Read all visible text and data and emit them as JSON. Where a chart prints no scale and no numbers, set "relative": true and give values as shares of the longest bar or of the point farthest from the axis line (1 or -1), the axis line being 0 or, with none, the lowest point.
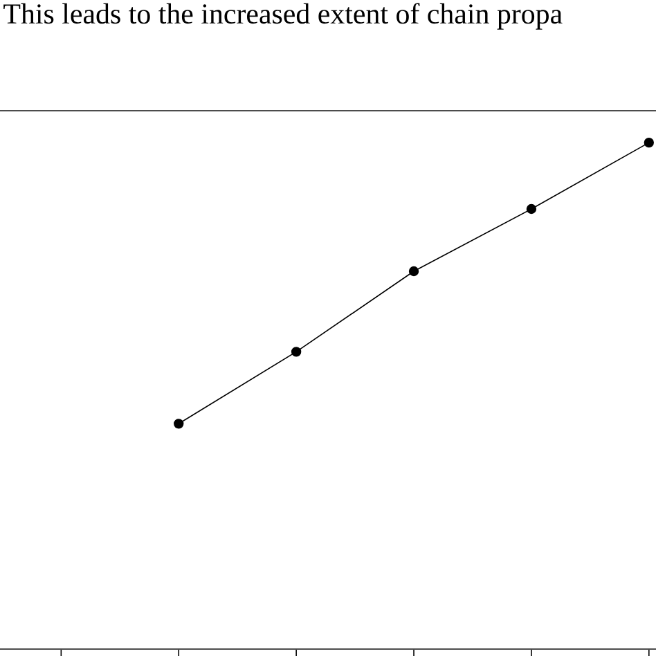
{
  "chart_data": {
    "type": "line",
    "relative": true,
    "annotations": [
      "This leads to the increased extent of chain propa"
    ],
    "categories": [
      null,
      null,
      null,
      null,
      null,
      null
    ],
    "series": [
      {
        "color": "#000000",
        "values": [
          null,
          0.445,
          0.587,
          0.746,
          0.869,
          1
        ]
      }
    ],
    "marker": "circle",
    "line_style": "solid",
    "grid": false
  }
}
